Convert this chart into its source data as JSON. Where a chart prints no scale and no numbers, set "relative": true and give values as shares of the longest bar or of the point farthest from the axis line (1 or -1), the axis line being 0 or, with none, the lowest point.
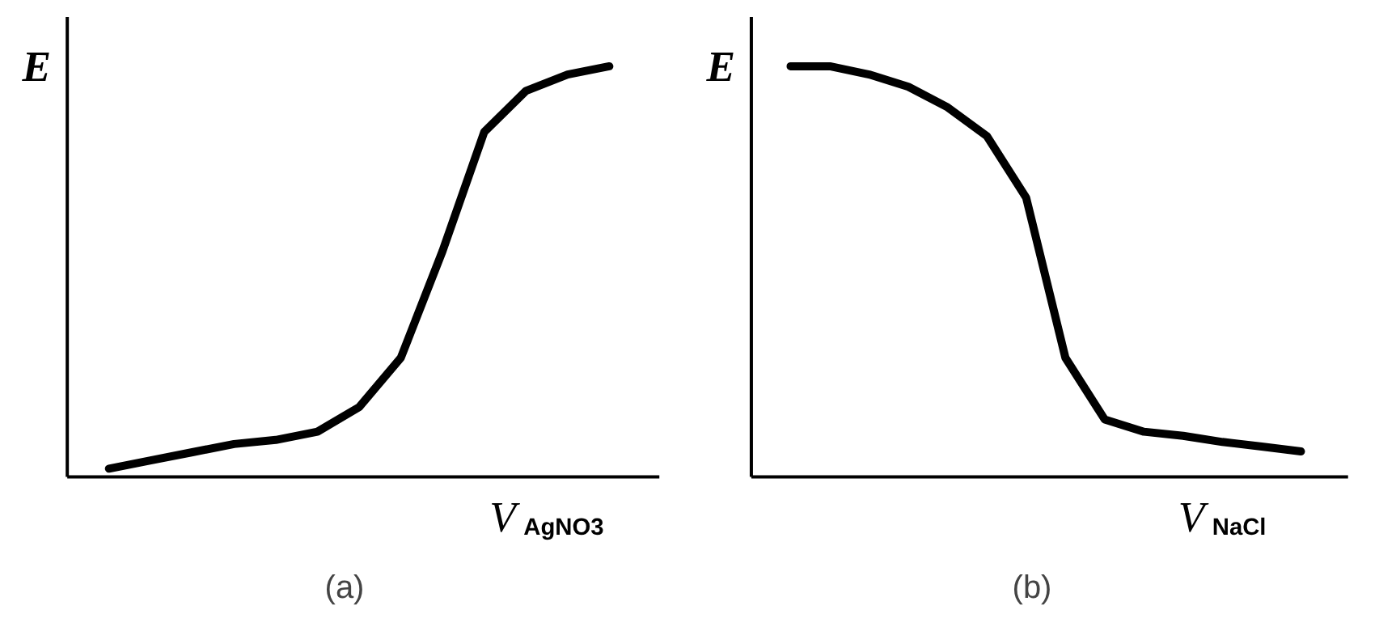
{
  "chart_data": [
    {
      "type": "line",
      "relative": true,
      "title": "(a)",
      "ylabel": "E",
      "xlabel": "V$_{AgNO3}$",
      "categories": [
        null,
        null,
        null,
        null,
        null,
        null,
        null,
        null,
        null,
        null,
        null,
        null,
        null
      ],
      "series": [
        {
          "color": "#000000",
          "values": [
            0.02,
            0.04,
            0.06,
            0.08,
            0.09,
            0.11,
            0.17,
            0.29,
            0.55,
            0.84,
            0.94,
            0.98,
            1.0
          ]
        }
      ]
    },
    {
      "type": "line",
      "relative": true,
      "title": "(b)",
      "ylabel": "E",
      "xlabel": "V$_{NaCl}$",
      "categories": [
        null,
        null,
        null,
        null,
        null,
        null,
        null,
        null,
        null,
        null,
        null,
        null,
        null,
        null
      ],
      "series": [
        {
          "color": "#000000",
          "values": [
            1.0,
            1.0,
            0.98,
            0.95,
            0.9,
            0.83,
            0.68,
            0.29,
            0.14,
            0.11,
            0.1,
            0.085,
            0.074,
            0.062
          ]
        }
      ]
    }
  ]
}
